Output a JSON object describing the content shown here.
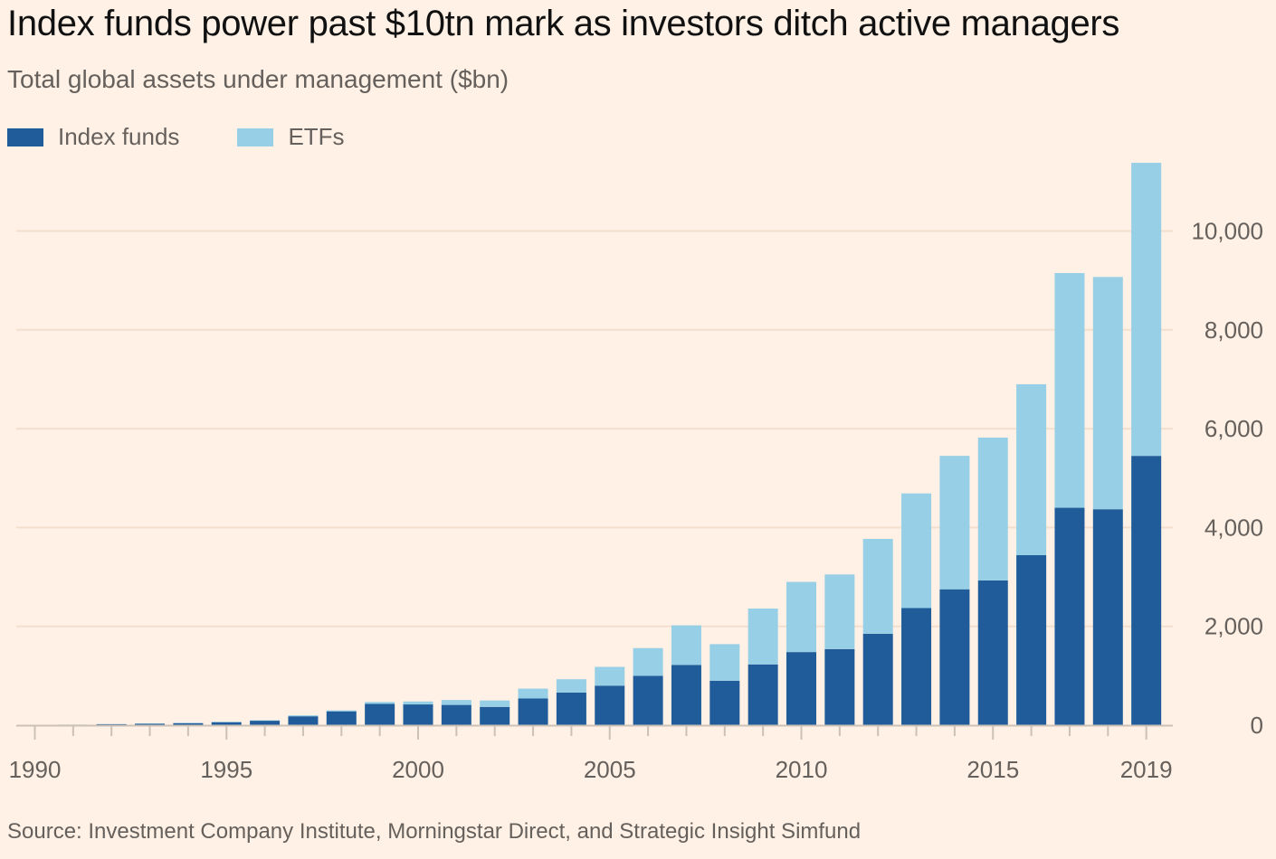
{
  "chart_data": {
    "type": "bar",
    "stacked": true,
    "title": "Index funds power past $10tn mark as investors ditch active managers",
    "subtitle": "Total global assets under management ($bn)",
    "source": "Source: Investment Company Institute, Morningstar Direct, and Strategic Insight Simfund",
    "categories": [
      "1990",
      "1991",
      "1992",
      "1993",
      "1994",
      "1995",
      "1996",
      "1997",
      "1998",
      "1999",
      "2000",
      "2001",
      "2002",
      "2003",
      "2004",
      "2005",
      "2006",
      "2007",
      "2008",
      "2009",
      "2010",
      "2011",
      "2012",
      "2013",
      "2014",
      "2015",
      "2016",
      "2017",
      "2018",
      "2019"
    ],
    "x_tick_labels": [
      "1990",
      "1995",
      "2000",
      "2005",
      "2010",
      "2015",
      "2019"
    ],
    "series": [
      {
        "name": "Index funds",
        "color": "#1f5c99",
        "values": [
          5,
          10,
          20,
          30,
          40,
          60,
          90,
          180,
          280,
          430,
          420,
          410,
          370,
          540,
          660,
          800,
          1000,
          1220,
          900,
          1230,
          1480,
          1540,
          1850,
          2370,
          2750,
          2930,
          3440,
          4400,
          4370,
          5450
        ]
      },
      {
        "name": "ETFs",
        "color": "#96cfe6",
        "values": [
          0,
          0,
          2,
          5,
          10,
          10,
          10,
          20,
          20,
          40,
          60,
          100,
          130,
          200,
          270,
          380,
          560,
          800,
          740,
          1130,
          1420,
          1510,
          1920,
          2320,
          2700,
          2890,
          3460,
          4750,
          4700,
          5930
        ]
      }
    ],
    "y_ticks": [
      0,
      2000,
      4000,
      6000,
      8000,
      10000
    ],
    "y_tick_labels": [
      "0",
      "2,000",
      "4,000",
      "6,000",
      "8,000",
      "10,000"
    ],
    "ylim": [
      0,
      11400
    ],
    "y_axis_position": "right",
    "grid": true,
    "legend_position": "top-left",
    "background": "#fff1e5",
    "grid_color": "#f2dfce",
    "axis_color": "#ccc1b7"
  }
}
